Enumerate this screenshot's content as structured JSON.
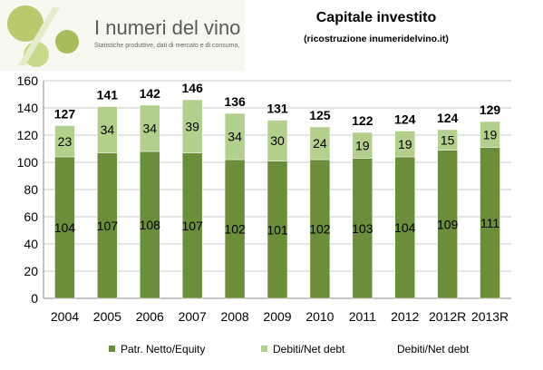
{
  "header": {
    "site_name": "I numeri del vino",
    "tagline": "Statistiche produttive, dati di mercato e di consumo,"
  },
  "chart_data": {
    "type": "bar",
    "stacked": true,
    "title": "Capitale investito",
    "subtitle": "(ricostruzione  inumeridelvino.it)",
    "categories": [
      "2004",
      "2005",
      "2006",
      "2007",
      "2008",
      "2009",
      "2010",
      "2011",
      "2012",
      "2012R",
      "2013R"
    ],
    "series": [
      {
        "name": "Patr. Netto/Equity",
        "values": [
          104,
          107,
          108,
          107,
          102,
          101,
          102,
          103,
          104,
          109,
          111
        ],
        "color": "#6b8e3a"
      },
      {
        "name": "Debiti/Net debt",
        "values": [
          23,
          34,
          34,
          39,
          34,
          30,
          24,
          19,
          19,
          15,
          19
        ],
        "color": "#b3cf8c"
      }
    ],
    "totals": [
      127,
      141,
      142,
      146,
      136,
      131,
      125,
      122,
      124,
      124,
      129
    ],
    "totals_legend_label": "Debiti/Net debt",
    "ylim": [
      0,
      160
    ],
    "yticks": [
      0,
      20,
      40,
      60,
      80,
      100,
      120,
      140,
      160
    ],
    "grid": true,
    "legend_position": "bottom"
  }
}
